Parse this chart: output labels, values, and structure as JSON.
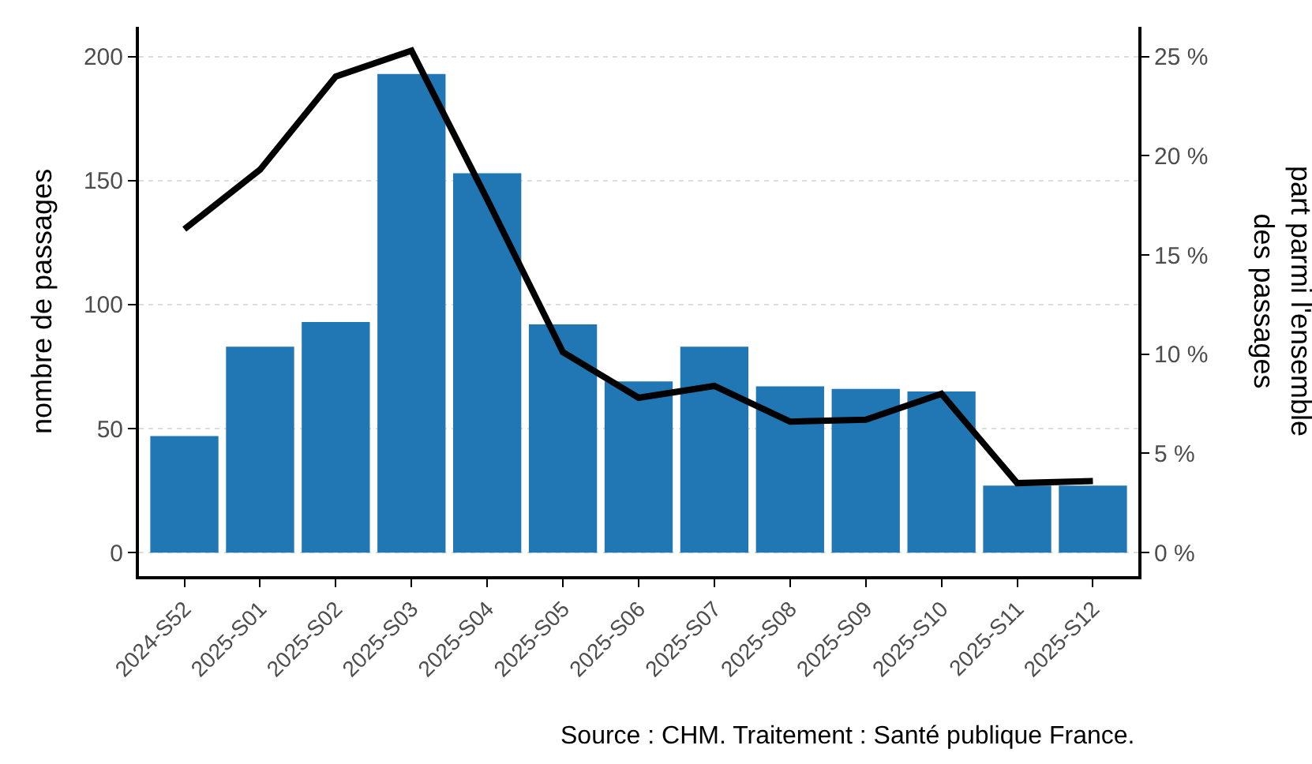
{
  "chart_data": {
    "type": "bar",
    "ylabel": "nombre de passages",
    "y2label": "part parmi l'ensemble\ndes passages",
    "categories": [
      "2024-S52",
      "2025-S01",
      "2025-S02",
      "2025-S03",
      "2025-S04",
      "2025-S05",
      "2025-S06",
      "2025-S07",
      "2025-S08",
      "2025-S09",
      "2025-S10",
      "2025-S11",
      "2025-S12"
    ],
    "series": [
      {
        "color": "#2077b4",
        "values": [
          47,
          83,
          93,
          193,
          153,
          92,
          69,
          83,
          67,
          66,
          65,
          27,
          27
        ]
      },
      {
        "type": "line",
        "axis": "y2",
        "color": "#000000",
        "values": [
          16.3,
          19.3,
          24.0,
          25.3,
          17.8,
          10.1,
          7.8,
          8.4,
          6.6,
          6.7,
          8.0,
          3.5,
          3.6
        ]
      }
    ],
    "ylim": [
      -9.5,
      212
    ],
    "yticks": [
      0,
      50,
      100,
      150,
      200
    ],
    "y2lim": [
      -1.19,
      26.5
    ],
    "y2ticks": [
      {
        "value": 0,
        "label": "0 %"
      },
      {
        "value": 5,
        "label": "5 %"
      },
      {
        "value": 10,
        "label": "10 %"
      },
      {
        "value": 15,
        "label": "15 %"
      },
      {
        "value": 20,
        "label": "20 %"
      },
      {
        "value": 25,
        "label": "25 %"
      }
    ],
    "grid": "y",
    "legend": false,
    "line_style": "solid",
    "marker": "none",
    "annotations": [
      "Source : CHM. Traitement : Santé publique France."
    ]
  }
}
